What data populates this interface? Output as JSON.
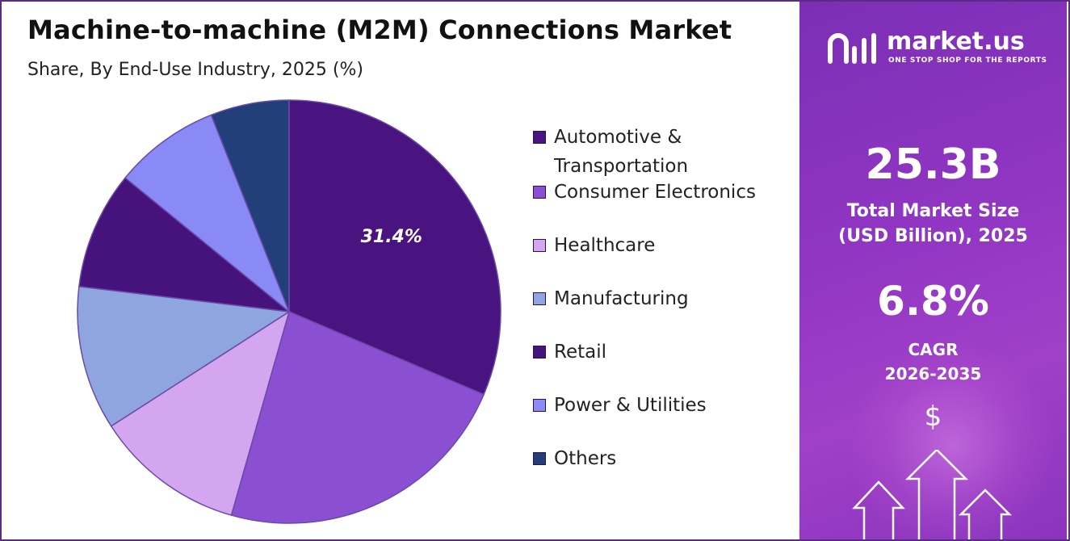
{
  "title": "Machine-to-machine (M2M) Connections Market",
  "subtitle": "Share, By End-Use Industry, 2025 (%)",
  "chart_data": {
    "type": "pie",
    "categories": [
      "Automotive & Transportation",
      "Consumer Electronics",
      "Healthcare",
      "Manufacturing",
      "Retail",
      "Power & Utilities",
      "Others"
    ],
    "values": [
      31.4,
      23.0,
      11.5,
      11.0,
      9.0,
      8.1,
      6.0
    ],
    "data_labels": [
      "31.4%",
      "",
      "",
      "",
      "",
      "",
      ""
    ],
    "colors": [
      "#4a1480",
      "#8b4fd1",
      "#d3a6ef",
      "#8fa5df",
      "#46137c",
      "#8a8af7",
      "#233f79"
    ],
    "legend_position": "right"
  },
  "brand": {
    "name": "market.us",
    "tagline": "ONE STOP SHOP FOR THE REPORTS"
  },
  "stats": {
    "market_size_value": "25.3B",
    "market_size_label_line1": "Total Market Size",
    "market_size_label_line2": "(USD Billion), 2025",
    "cagr_value": "6.8%",
    "cagr_label_line1": "CAGR",
    "cagr_label_line2": "2026-2035"
  },
  "icons": {
    "logo": "market-us-logo-icon",
    "dollar": "$",
    "arrows": "growth-arrows-icon"
  },
  "theme": {
    "panel_color": "#8f35c2",
    "border_color": "#5b2a86"
  }
}
